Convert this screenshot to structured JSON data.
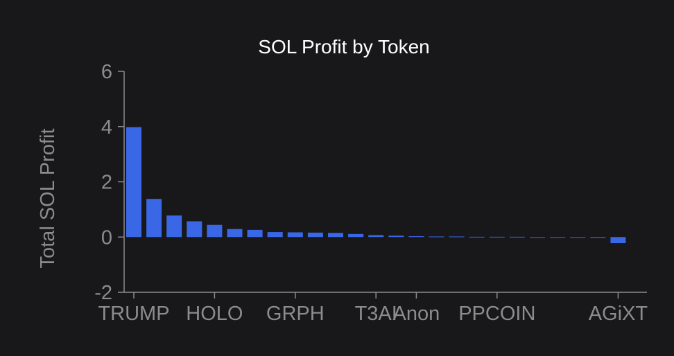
{
  "chart_data": {
    "type": "bar",
    "title": "SOL Profit by Token",
    "xlabel": "",
    "ylabel": "Total SOL Profit",
    "ylim": [
      -2,
      6
    ],
    "yticks": [
      -2,
      0,
      2,
      4,
      6
    ],
    "grid": false,
    "categories": [
      "TRUMP",
      "",
      "",
      "",
      "HOLO",
      "",
      "",
      "",
      "GRPH",
      "",
      "",
      "",
      "T3AI",
      "",
      "Anon",
      "",
      "",
      "",
      "PPCOIN",
      "",
      "",
      "",
      "",
      "",
      "AGiXT"
    ],
    "visible_tick_labels": [
      "TRUMP",
      "HOLO",
      "GRPH",
      "T3AI",
      "Anon",
      "PPCOIN",
      "AGiXT"
    ],
    "values": [
      3.98,
      1.38,
      0.78,
      0.57,
      0.44,
      0.29,
      0.26,
      0.18,
      0.17,
      0.16,
      0.15,
      0.11,
      0.07,
      0.05,
      0.03,
      0.02,
      0.02,
      0.01,
      0.01,
      0.01,
      0.0,
      0.0,
      0.0,
      -0.03,
      -0.22
    ],
    "bar_color": "#3a67e6"
  },
  "colors": {
    "background": "#18181b",
    "axis": "#8c8c8c",
    "title": "#ffffff"
  }
}
